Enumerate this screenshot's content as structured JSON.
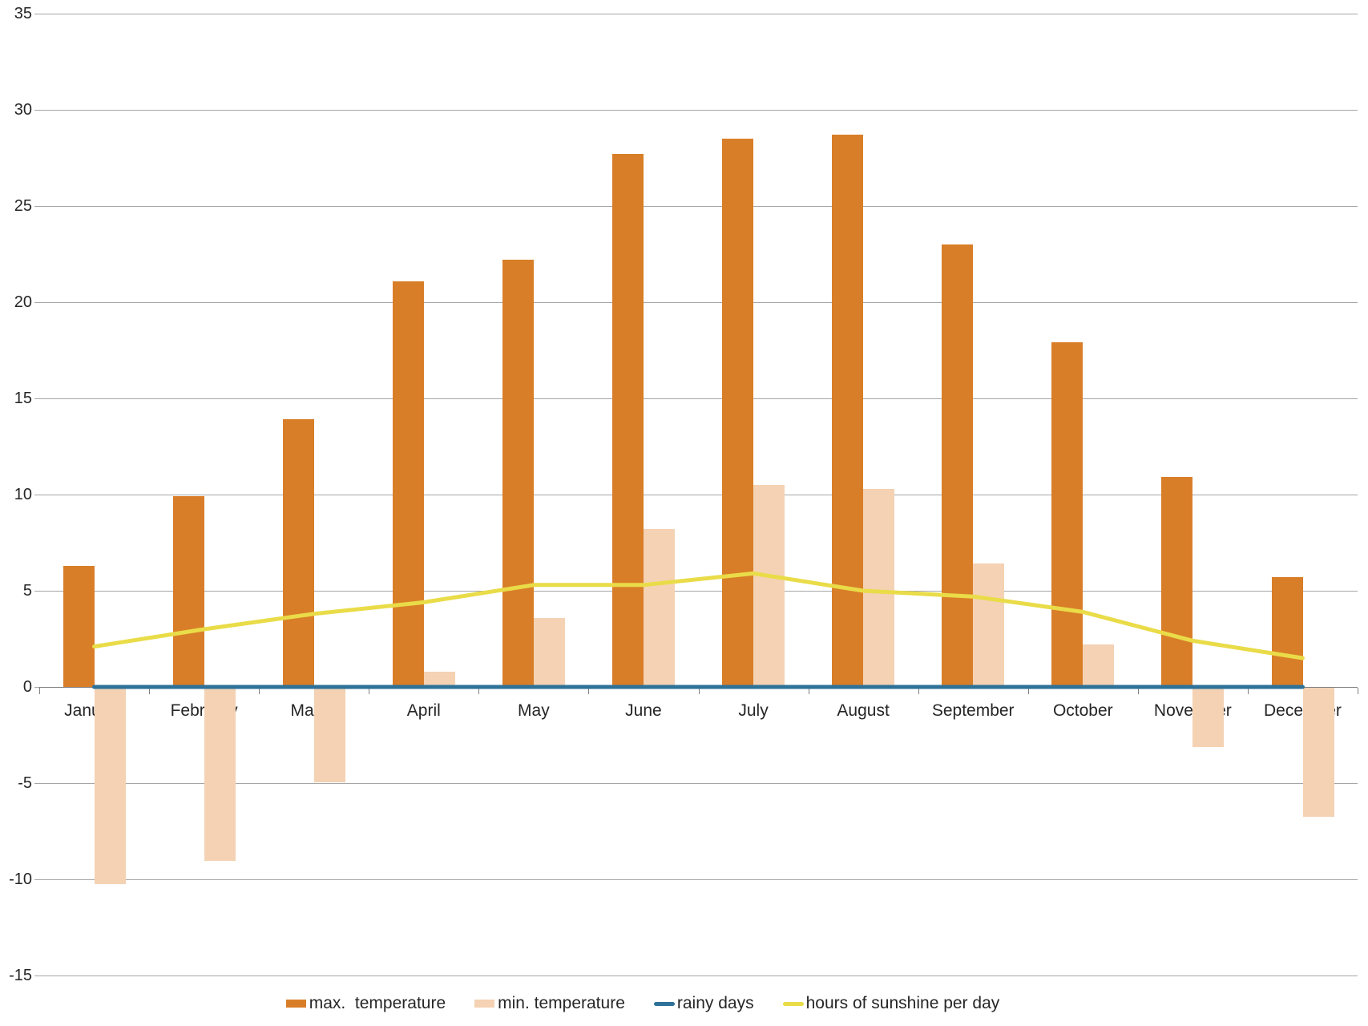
{
  "chart_data": {
    "type": "bar",
    "title": "",
    "xlabel": "",
    "ylabel": "",
    "categories": [
      "January",
      "February",
      "March",
      "April",
      "May",
      "June",
      "July",
      "August",
      "September",
      "October",
      "November",
      "December"
    ],
    "series": [
      {
        "name": "max.  temperature",
        "kind": "bar",
        "color": "#D97E28",
        "values": [
          6.3,
          9.9,
          13.9,
          21.1,
          22.2,
          27.7,
          28.5,
          28.7,
          23.0,
          17.9,
          10.9,
          5.7
        ]
      },
      {
        "name": "min. temperature",
        "kind": "bar",
        "color": "#F4D2B3",
        "values": [
          -10.2,
          -9.0,
          -4.9,
          0.8,
          3.6,
          8.2,
          10.5,
          10.3,
          6.4,
          2.2,
          -3.1,
          -6.7
        ]
      },
      {
        "name": "rainy days",
        "kind": "line",
        "color": "#2E7299",
        "values": [
          0,
          0,
          0,
          0,
          0,
          0,
          0,
          0,
          0,
          0,
          0,
          0
        ]
      },
      {
        "name": "hours of sunshine per day",
        "kind": "line",
        "color": "#E9DC48",
        "values": [
          2.1,
          3.0,
          3.8,
          4.4,
          5.3,
          5.3,
          5.9,
          5.0,
          4.7,
          3.9,
          2.4,
          1.5
        ]
      }
    ],
    "ylim": [
      -15,
      35
    ],
    "ytick_step": 5,
    "ytick_labels": [
      "-15",
      "-10",
      "-5",
      "0",
      "5",
      "10",
      "15",
      "20",
      "25",
      "30",
      "35"
    ],
    "grid": true,
    "legend_position": "bottom"
  },
  "style": {
    "grid_color": "#A6A6A6",
    "axis_color": "#808080",
    "text_color": "#262626",
    "background": "#FFFFFF"
  }
}
